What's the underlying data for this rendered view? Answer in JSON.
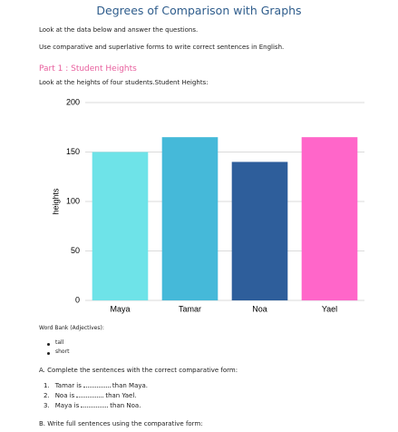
{
  "header": {
    "title": "Degrees of Comparison with Graphs"
  },
  "instructions": [
    "Look at the data below and answer the questions.",
    "Use comparative and superlative forms to write correct sentences in English."
  ],
  "part1": {
    "heading": "Part 1 : Student Heights",
    "text": "Look at the heights of four students.Student Heights:"
  },
  "chart_data": {
    "type": "bar",
    "y_label": "heights",
    "categories": [
      "Maya",
      "Tamar",
      "Noa",
      "Yael"
    ],
    "values": [
      150,
      165,
      140,
      165
    ],
    "colors": [
      "#6ee3e8",
      "#45b9d9",
      "#2e5e9b",
      "#ff66c9"
    ],
    "ylim": [
      0,
      200
    ],
    "yticks": [
      0,
      50,
      100,
      150,
      200
    ],
    "grid": true
  },
  "word_bank": {
    "title": "Word Bank (Adjectives):",
    "items": [
      "tall",
      "short"
    ]
  },
  "section_a": {
    "title": "A. Complete the sentences with the correct comparative form:",
    "items": [
      {
        "marker": "1.",
        "before": "Tamar is",
        "after": "than Maya."
      },
      {
        "marker": "2.",
        "before": "Noa is",
        "after": "than Yael."
      },
      {
        "marker": "3.",
        "before": "Maya is",
        "after": "than Noa."
      }
    ]
  },
  "section_b": {
    "title": "B. Write full sentences using the comparative form:"
  }
}
